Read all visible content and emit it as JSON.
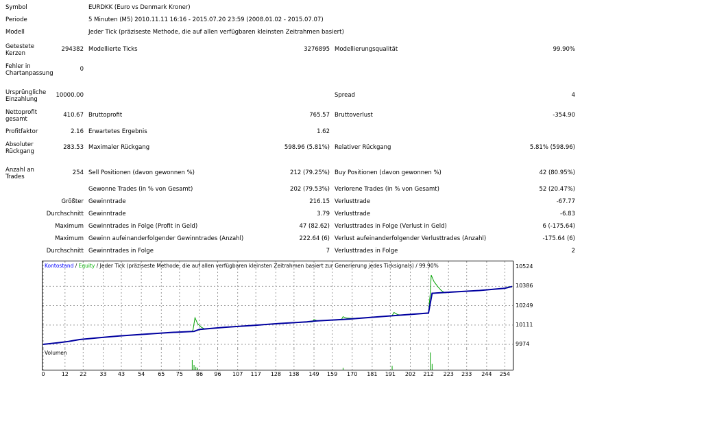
{
  "info": {
    "symbol_label": "Symbol",
    "symbol_value": "EURDKK (Euro vs Denmark Kroner)",
    "period_label": "Periode",
    "period_value": "5 Minuten (M5) 2010.11.11 16:16 - 2015.07.20 23:59 (2008.01.02 - 2015.07.07)",
    "model_label": "Modell",
    "model_value": "Jeder Tick (präziseste Methode, die auf allen verfügbaren kleinsten Zeitrahmen basiert)"
  },
  "stats": {
    "bars_label": "Getestete Kerzen",
    "bars_value": "294382",
    "ticks_label": "Modellierte Ticks",
    "ticks_value": "3276895",
    "quality_label": "Modellierungsqualität",
    "quality_value": "99.90%",
    "errors_label": "Fehler in Chartanpassung",
    "errors_value": "0",
    "deposit_label": "Ursprüngliche Einzahlung",
    "deposit_value": "10000.00",
    "spread_label": "Spread",
    "spread_value": "4",
    "netprofit_label": "Nettoprofit gesamt",
    "netprofit_value": "410.67",
    "grossprofit_label": "Bruttoprofit",
    "grossprofit_value": "765.57",
    "grossloss_label": "Bruttoverlust",
    "grossloss_value": "-354.90",
    "pf_label": "Profitfaktor",
    "pf_value": "2.16",
    "expected_label": "Erwartetes Ergebnis",
    "expected_value": "1.62",
    "absdd_label": "Absoluter Rückgang",
    "absdd_value": "283.53",
    "maxdd_label": "Maximaler Rückgang",
    "maxdd_value": "598.96 (5.81%)",
    "reldd_label": "Relativer Rückgang",
    "reldd_value": "5.81% (598.96)",
    "trades_label": "Anzahl an Trades",
    "trades_value": "254",
    "sell_label": "Sell Positionen (davon gewonnen %)",
    "sell_value": "212 (79.25%)",
    "buy_label": "Buy Positionen (davon gewonnen %)",
    "buy_value": "42 (80.95%)",
    "won_label": "Gewonne Trades (in % von Gesamt)",
    "won_value": "202 (79.53%)",
    "lost_label": "Verlorene Trades (in % von Gesamt)",
    "lost_value": "52 (20.47%)",
    "largest_label": "Größter",
    "largest_win_label": "Gewinntrade",
    "largest_win_value": "216.15",
    "largest_loss_label": "Verlusttrade",
    "largest_loss_value": "-67.77",
    "average_label": "Durchschnitt",
    "avg_win_label": "Gewinntrade",
    "avg_win_value": "3.79",
    "avg_loss_label": "Verlusttrade",
    "avg_loss_value": "-6.83",
    "maximum_label": "Maximum",
    "max_consec_wins_label": "Gewinntrades in Folge (Profit in Geld)",
    "max_consec_wins_value": "47 (82.62)",
    "max_consec_losses_label": "Verlusttrades in Folge (Verlust in Geld)",
    "max_consec_losses_value": "6 (-175.64)",
    "maximum2_label": "Maximum",
    "max_consec_profit_label": "Gewinn aufeinanderfolgender Gewinntrades (Anzahl)",
    "max_consec_profit_value": "222.64 (6)",
    "max_consec_loss_label": "Verlust aufeinanderfolgender Verlusttrades (Anzahl)",
    "max_consec_loss_value": "-175.64 (6)",
    "average2_label": "Durchschnitt",
    "avg_consec_wins_label": "Gewinntrades in Folge",
    "avg_consec_wins_value": "7",
    "avg_consec_losses_label": "Verlusttrades in Folge",
    "avg_consec_losses_value": "2"
  },
  "chart_data": {
    "type": "line",
    "legend": {
      "balance": "Kontostand",
      "sep": " / ",
      "equity": "Equity",
      "rest": " / Jeder Tick (präziseste Methode, die auf allen verfügbaren kleinsten Zeitrahmen basiert zur Generierung jedes Ticksignals) / 99.90%"
    },
    "colors": {
      "balance": "#0000a0",
      "equity": "#00a000",
      "legend_balance": "#0000ff",
      "legend_equity": "#00b000"
    },
    "ylim": [
      9974,
      10524
    ],
    "yticks": [
      10524,
      10386,
      10249,
      10111,
      9974
    ],
    "xlim": [
      0,
      258
    ],
    "xticks": [
      0,
      12,
      22,
      33,
      43,
      54,
      65,
      75,
      86,
      96,
      107,
      117,
      128,
      138,
      149,
      159,
      170,
      181,
      191,
      202,
      212,
      223,
      233,
      244,
      254
    ],
    "balance": [
      [
        0,
        9974
      ],
      [
        8,
        9985
      ],
      [
        14,
        9995
      ],
      [
        20,
        10008
      ],
      [
        30,
        10020
      ],
      [
        42,
        10034
      ],
      [
        55,
        10045
      ],
      [
        70,
        10058
      ],
      [
        83,
        10066
      ],
      [
        86,
        10080
      ],
      [
        100,
        10095
      ],
      [
        115,
        10108
      ],
      [
        130,
        10122
      ],
      [
        145,
        10133
      ],
      [
        150,
        10140
      ],
      [
        165,
        10150
      ],
      [
        180,
        10165
      ],
      [
        195,
        10180
      ],
      [
        212,
        10196
      ],
      [
        214,
        10336
      ],
      [
        225,
        10345
      ],
      [
        240,
        10356
      ],
      [
        254,
        10372
      ],
      [
        258,
        10385
      ]
    ],
    "equity": [
      [
        0,
        9974
      ],
      [
        8,
        9985
      ],
      [
        14,
        9995
      ],
      [
        20,
        10008
      ],
      [
        30,
        10020
      ],
      [
        42,
        10034
      ],
      [
        55,
        10045
      ],
      [
        70,
        10058
      ],
      [
        82,
        10066
      ],
      [
        82.5,
        10080
      ],
      [
        83.5,
        10163
      ],
      [
        85,
        10120
      ],
      [
        87,
        10095
      ],
      [
        89,
        10082
      ],
      [
        100,
        10095
      ],
      [
        115,
        10108
      ],
      [
        130,
        10122
      ],
      [
        148,
        10133
      ],
      [
        149,
        10150
      ],
      [
        151,
        10140
      ],
      [
        164,
        10148
      ],
      [
        165,
        10170
      ],
      [
        167,
        10160
      ],
      [
        170,
        10158
      ],
      [
        180,
        10165
      ],
      [
        192,
        10178
      ],
      [
        193,
        10200
      ],
      [
        195,
        10185
      ],
      [
        197,
        10182
      ],
      [
        212,
        10196
      ],
      [
        213,
        10340
      ],
      [
        213.5,
        10465
      ],
      [
        215,
        10420
      ],
      [
        217,
        10385
      ],
      [
        219,
        10356
      ],
      [
        221,
        10340
      ],
      [
        225,
        10345
      ],
      [
        240,
        10356
      ],
      [
        254,
        10372
      ],
      [
        256,
        10383
      ],
      [
        258,
        10380
      ]
    ],
    "volume_label": "Volumen",
    "volume": [
      [
        82,
        10
      ],
      [
        83,
        5
      ],
      [
        84,
        3
      ],
      [
        85,
        2
      ],
      [
        165,
        2
      ],
      [
        192,
        4
      ],
      [
        213,
        18
      ],
      [
        214,
        6
      ]
    ],
    "volume_max": 20
  }
}
